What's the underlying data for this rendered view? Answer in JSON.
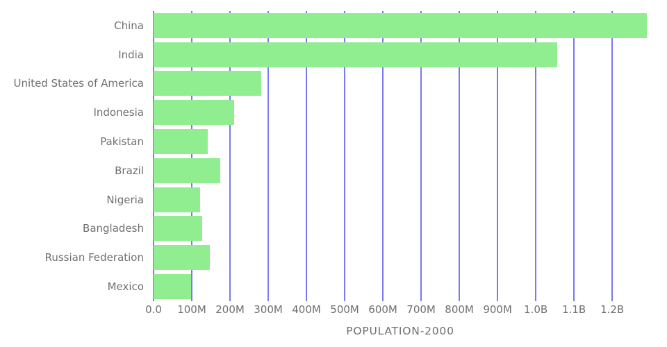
{
  "chart_data": {
    "type": "bar",
    "orientation": "horizontal",
    "title": "POPULATION-2000",
    "categories": [
      "China",
      "India",
      "United States of America",
      "Indonesia",
      "Pakistan",
      "Brazil",
      "Nigeria",
      "Bangladesh",
      "Russian Federation",
      "Mexico"
    ],
    "values_millions": [
      1290.6,
      1056.6,
      281.7,
      211.5,
      142.3,
      174.8,
      122.3,
      127.7,
      146.8,
      98.9
    ],
    "x_axis": {
      "tick_values_millions": [
        0,
        100,
        200,
        300,
        400,
        500,
        600,
        700,
        800,
        900,
        1000,
        1100,
        1200
      ],
      "tick_labels": [
        "0.0",
        "100M",
        "200M",
        "300M",
        "400M",
        "500M",
        "600M",
        "700M",
        "800M",
        "900M",
        "1.0B",
        "1.1B",
        "1.2B"
      ],
      "max_value_millions": 1290.6
    },
    "grid": "vertical",
    "legend": "none",
    "colors": {
      "bar": "#90EE90",
      "gridline": "#7B78F2",
      "text": "#6F6F6F",
      "background": "#FFFFFF"
    }
  }
}
